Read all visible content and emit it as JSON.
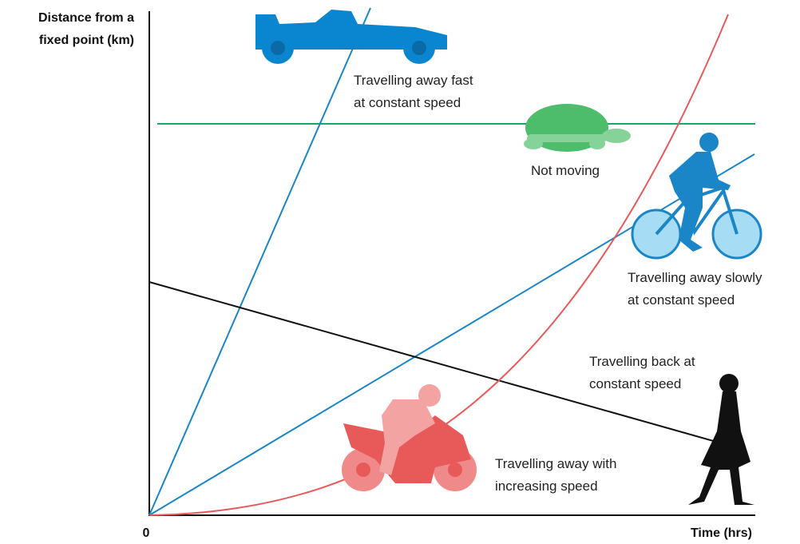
{
  "axes": {
    "y_label": [
      "Distance from a",
      "fixed point (km)"
    ],
    "x_label": "Time (hrs)",
    "origin": "0"
  },
  "annotations": [
    {
      "lines": [
        "Travelling away fast",
        "at constant speed"
      ]
    },
    {
      "lines": [
        "Not moving"
      ]
    },
    {
      "lines": [
        "Travelling away slowly",
        "at constant speed"
      ]
    },
    {
      "lines": [
        "Travelling back at",
        "constant speed"
      ]
    },
    {
      "lines": [
        "Travelling away with",
        "increasing speed"
      ]
    }
  ]
}
